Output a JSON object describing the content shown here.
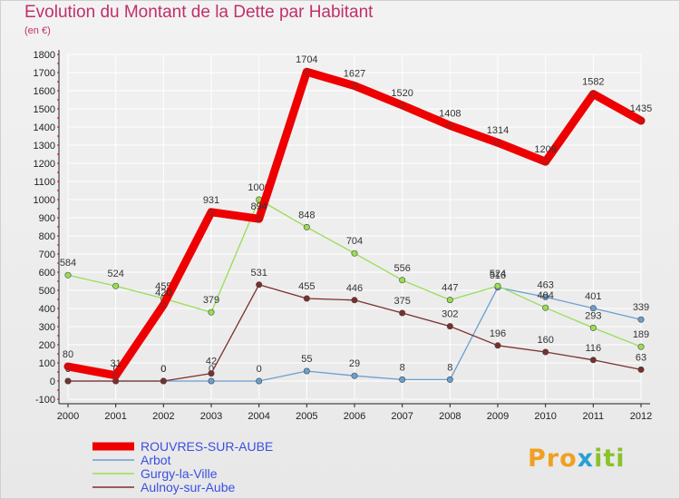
{
  "chart_data": {
    "type": "line",
    "title": "Evolution du Montant de la Dette par Habitant",
    "subtitle": "(en €)",
    "xlabel": "",
    "ylabel": "",
    "categories": [
      "2000",
      "2001",
      "2002",
      "2003",
      "2004",
      "2005",
      "2006",
      "2007",
      "2008",
      "2009",
      "2010",
      "2011",
      "2012"
    ],
    "ylim": [
      -100,
      1800
    ],
    "yticks": [
      -100,
      0,
      100,
      200,
      300,
      400,
      500,
      600,
      700,
      800,
      900,
      1000,
      1100,
      1200,
      1300,
      1400,
      1500,
      1600,
      1700,
      1800
    ],
    "grid": true,
    "legend_position": "bottom-left",
    "series": [
      {
        "name": "ROUVRES-SUR-AUBE",
        "color": "#ee0000",
        "emphasis": true,
        "values": [
          80,
          31,
          420,
          931,
          894,
          1704,
          1627,
          1520,
          1408,
          1314,
          1209,
          1582,
          1435
        ],
        "labels": [
          "80",
          "31",
          "420",
          "931",
          "894",
          "1704",
          "1627",
          "1520",
          "1408",
          "1314",
          "1209",
          "1582",
          "1435"
        ]
      },
      {
        "name": "Arbot",
        "color": "#6a9fd0",
        "values": [
          0,
          0,
          0,
          0,
          0,
          55,
          29,
          8,
          8,
          516,
          463,
          401,
          339
        ],
        "labels": [
          "0",
          "0",
          "0",
          "0",
          "0",
          "55",
          "29",
          "8",
          "8",
          "516",
          "463",
          "401",
          "339"
        ]
      },
      {
        "name": "Gurgy-la-Ville",
        "color": "#99dd55",
        "values": [
          584,
          524,
          455,
          379,
          1000,
          848,
          704,
          556,
          447,
          524,
          404,
          293,
          189
        ],
        "labels": [
          "584",
          "524",
          "455",
          "379",
          "1000",
          "848",
          "704",
          "556",
          "447",
          "524",
          "404",
          "293",
          "189"
        ]
      },
      {
        "name": "Aulnoy-sur-Aube",
        "color": "#7a2f2f",
        "values": [
          0,
          0,
          0,
          42,
          531,
          455,
          446,
          375,
          302,
          196,
          160,
          116,
          63
        ],
        "labels": [
          "0",
          "0",
          "0",
          "42",
          "531",
          "455",
          "446",
          "375",
          "302",
          "196",
          "160",
          "116",
          "63"
        ]
      }
    ]
  },
  "logo": {
    "text": "Proxiti"
  }
}
